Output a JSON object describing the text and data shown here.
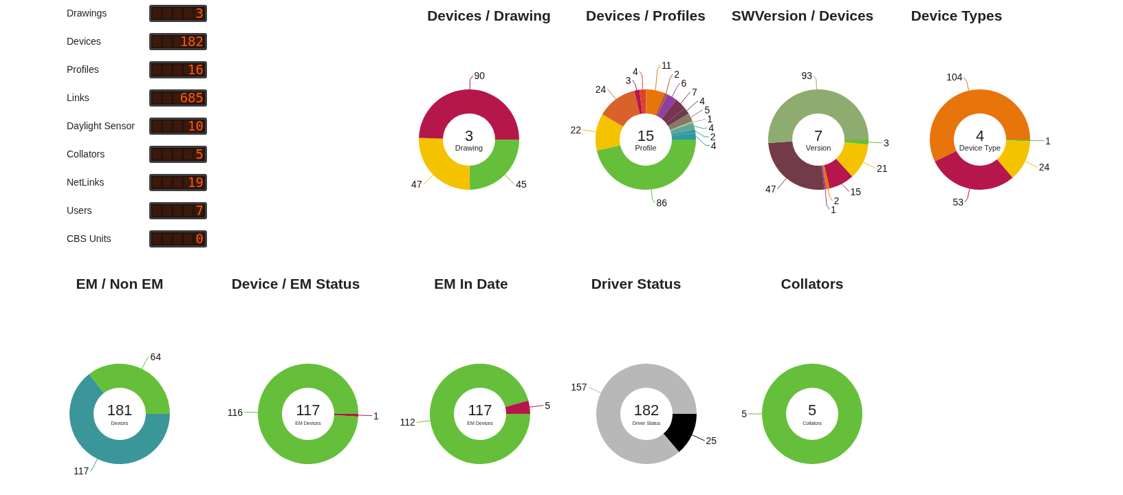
{
  "chart_data": [
    {
      "type": "other",
      "categories": [
        "Drawings",
        "Devices",
        "Profiles",
        "Links",
        "Daylight Sensor",
        "Collators",
        "NetLinks",
        "Users",
        "CBS Units"
      ],
      "values": [
        3,
        182,
        16,
        685,
        10,
        5,
        19,
        7,
        0
      ],
      "data_labels": true
    },
    {
      "type": "donut",
      "title": "Devices / Drawing",
      "annotations": [
        "3",
        "Drawing"
      ],
      "categories": [
        null,
        null,
        null
      ],
      "values": [
        45,
        47,
        90
      ],
      "colors": [
        "#66bf3a",
        "#f5c200",
        "#b5174a"
      ],
      "data_labels": true
    },
    {
      "type": "donut",
      "title": "Devices / Profiles",
      "annotations": [
        "15",
        "Profile"
      ],
      "categories": [
        null,
        null,
        null,
        null,
        null,
        null,
        null,
        null,
        null,
        null,
        null,
        null,
        null,
        null,
        null
      ],
      "values": [
        86,
        22,
        24,
        3,
        4,
        11,
        2,
        6,
        7,
        4,
        5,
        1,
        4,
        2,
        4
      ],
      "colors": [
        "#66bf3a",
        "#f5c200",
        "#d9622b",
        "#b5174a",
        "#d9452b",
        "#e8740c",
        "#b05a3a",
        "#8e3fa0",
        "#7b3352",
        "#6d3b4a",
        "#8a7868",
        "#9ac48a",
        "#5ba89a",
        "#3a9699",
        "#2a9aa8"
      ],
      "data_labels": true
    },
    {
      "type": "donut",
      "title": "SWVersion / Devices",
      "annotations": [
        "7",
        "Version"
      ],
      "categories": [
        null,
        null,
        null,
        null,
        null,
        null,
        null
      ],
      "values": [
        3,
        21,
        15,
        2,
        1,
        47,
        93
      ],
      "colors": [
        "#66bf3a",
        "#f5c200",
        "#b5174a",
        "#e8740c",
        "#8e3fa0",
        "#733b48",
        "#8fac70"
      ],
      "data_labels": true
    },
    {
      "type": "donut",
      "title": "Device Types",
      "annotations": [
        "4",
        "Device Type"
      ],
      "categories": [
        null,
        null,
        null,
        null
      ],
      "values": [
        1,
        24,
        53,
        104
      ],
      "colors": [
        "#66bf3a",
        "#f5c200",
        "#b5174a",
        "#e8740c"
      ],
      "data_labels": true
    },
    {
      "type": "donut",
      "title": "EM / Non EM",
      "annotations": [
        "181",
        "Devices"
      ],
      "categories": [
        null,
        null
      ],
      "values": [
        117,
        64
      ],
      "colors": [
        "#3a9699",
        "#66bf3a"
      ],
      "data_labels": true
    },
    {
      "type": "donut",
      "title": "Device / EM Status",
      "annotations": [
        "117",
        "EM Devices"
      ],
      "categories": [
        null,
        null
      ],
      "values": [
        1,
        116
      ],
      "colors": [
        "#b5174a",
        "#66bf3a"
      ],
      "data_labels": true
    },
    {
      "type": "donut",
      "title": "EM In Date",
      "annotations": [
        "117",
        "EM Devices"
      ],
      "categories": [
        null,
        null
      ],
      "values": [
        112,
        5
      ],
      "colors": [
        "#66bf3a",
        "#b5174a"
      ],
      "data_labels": true
    },
    {
      "type": "donut",
      "title": "Driver Status",
      "annotations": [
        "182",
        "Driver Status"
      ],
      "categories": [
        null,
        null
      ],
      "values": [
        25,
        157
      ],
      "colors": [
        "#000000",
        "#b8b8b8"
      ],
      "data_labels": true
    },
    {
      "type": "donut",
      "title": "Collators",
      "annotations": [
        "5",
        "Collators"
      ],
      "categories": [
        null
      ],
      "values": [
        5
      ],
      "colors": [
        "#66bf3a"
      ],
      "data_labels": true
    }
  ]
}
